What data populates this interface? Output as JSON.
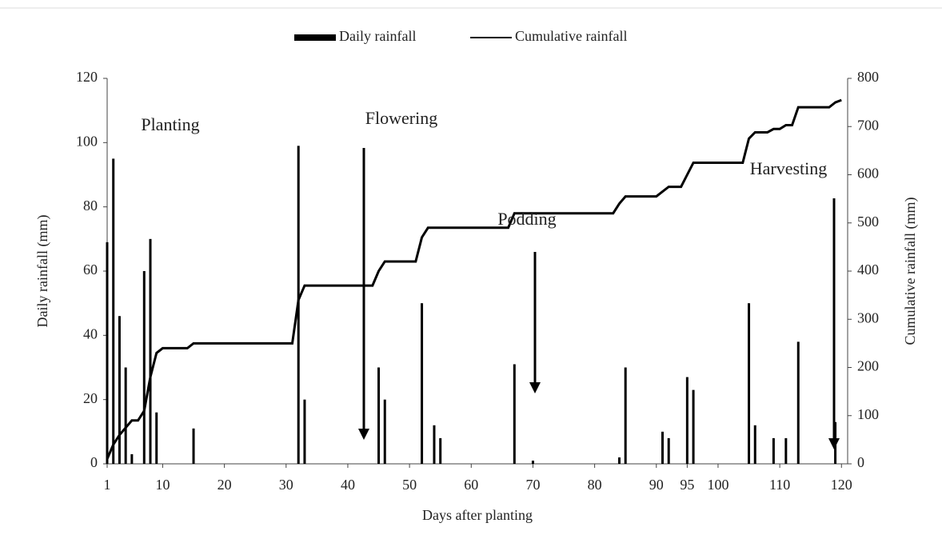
{
  "chart_data": {
    "type": "combo",
    "x_label": "Days after planting",
    "y_label": "Daily rainfall (mm)",
    "y2_label": "Cumulative rainfall (mm)",
    "xlim": [
      1,
      121
    ],
    "xticks": [
      1,
      10,
      20,
      30,
      40,
      50,
      60,
      70,
      80,
      90,
      95,
      100,
      110,
      120
    ],
    "ylim": [
      0,
      120
    ],
    "yticks": [
      0,
      20,
      40,
      60,
      80,
      100,
      120
    ],
    "y2lim": [
      0,
      800
    ],
    "y2ticks": [
      0,
      100,
      200,
      300,
      400,
      500,
      600,
      700,
      800
    ],
    "series": [
      {
        "name": "Daily rainfall",
        "type": "bar",
        "color": "#000000",
        "x": [
          1,
          2,
          3,
          4,
          5,
          7,
          8,
          9,
          15,
          32,
          33,
          45,
          46,
          52,
          54,
          55,
          67,
          70,
          84,
          85,
          91,
          92,
          95,
          96,
          105,
          106,
          109,
          111,
          113,
          119
        ],
        "values": [
          69,
          95,
          46,
          30,
          3,
          60,
          70,
          16,
          11,
          99,
          20,
          30,
          20,
          50,
          12,
          8,
          31,
          1,
          2,
          30,
          10,
          8,
          27,
          23,
          50,
          12,
          8,
          8,
          38,
          13
        ]
      },
      {
        "name": "Cumulative rainfall",
        "type": "line",
        "axis": "y2",
        "color": "#000000",
        "x": [
          1,
          2,
          3,
          4,
          5,
          6,
          7,
          8,
          9,
          10,
          14,
          15,
          31,
          32,
          33,
          44,
          45,
          46,
          51,
          52,
          53,
          66,
          67,
          83,
          84,
          85,
          90,
          91,
          92,
          94,
          95,
          96,
          104,
          105,
          106,
          108,
          109,
          110,
          111,
          112,
          113,
          118,
          119,
          120
        ],
        "values": [
          10,
          40,
          60,
          75,
          90,
          90,
          110,
          180,
          230,
          240,
          240,
          250,
          250,
          340,
          370,
          370,
          400,
          420,
          420,
          470,
          490,
          490,
          520,
          520,
          540,
          555,
          555,
          565,
          575,
          575,
          600,
          625,
          625,
          675,
          688,
          688,
          695,
          695,
          703,
          703,
          740,
          740,
          750,
          755
        ]
      }
    ],
    "annotations": [
      "Planting",
      "Flowering",
      "Podding",
      "Harvesting"
    ]
  }
}
